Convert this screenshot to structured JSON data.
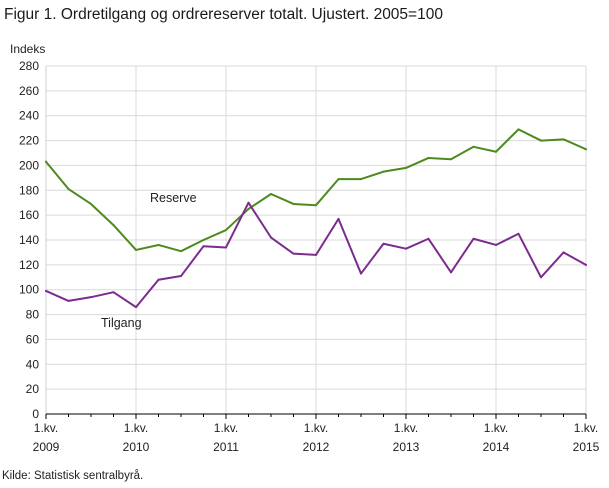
{
  "figure": {
    "title": "Figur 1. Ordretilgang og ordrereserver totalt. Ujustert. 2005=100",
    "source": "Kilde: Statistisk sentralbyrå."
  },
  "chart_data": {
    "type": "line",
    "title": "Figur 1. Ordretilgang og ordrereserver totalt. Ujustert. 2005=100",
    "ylabel": "Indeks",
    "xlabel": "",
    "ylim": [
      0,
      280
    ],
    "y_ticks": [
      0,
      20,
      40,
      60,
      80,
      100,
      120,
      140,
      160,
      180,
      200,
      220,
      240,
      260,
      280
    ],
    "grid": true,
    "legend": "inline-labels",
    "x": [
      "2009K1",
      "2009K2",
      "2009K3",
      "2009K4",
      "2010K1",
      "2010K2",
      "2010K3",
      "2010K4",
      "2011K1",
      "2011K2",
      "2011K3",
      "2011K4",
      "2012K1",
      "2012K2",
      "2012K3",
      "2012K4",
      "2013K1",
      "2013K2",
      "2013K3",
      "2013K4",
      "2014K1",
      "2014K2",
      "2014K3",
      "2014K4",
      "2015K1"
    ],
    "x_tick_labels": [
      {
        "line1": "1.kv.",
        "line2": "2009",
        "index": 0
      },
      {
        "line1": "1.kv.",
        "line2": "2010",
        "index": 4
      },
      {
        "line1": "1.kv.",
        "line2": "2011",
        "index": 8
      },
      {
        "line1": "1.kv.",
        "line2": "2012",
        "index": 12
      },
      {
        "line1": "1.kv.",
        "line2": "2013",
        "index": 16
      },
      {
        "line1": "1.kv.",
        "line2": "2014",
        "index": 20
      },
      {
        "line1": "1.kv.",
        "line2": "2015",
        "index": 24
      }
    ],
    "series": [
      {
        "name": "Reserve",
        "color": "#4d8a1e",
        "values": [
          203,
          181,
          169,
          152,
          132,
          136,
          131,
          140,
          148,
          165,
          177,
          169,
          168,
          189,
          189,
          195,
          198,
          206,
          205,
          215,
          211,
          229,
          220,
          221,
          213
        ]
      },
      {
        "name": "Tilgang",
        "color": "#7b2c8c",
        "values": [
          99,
          91,
          94,
          98,
          86,
          108,
          111,
          135,
          134,
          170,
          142,
          129,
          128,
          157,
          113,
          137,
          133,
          141,
          114,
          141,
          136,
          145,
          110,
          130,
          120
        ]
      }
    ]
  }
}
